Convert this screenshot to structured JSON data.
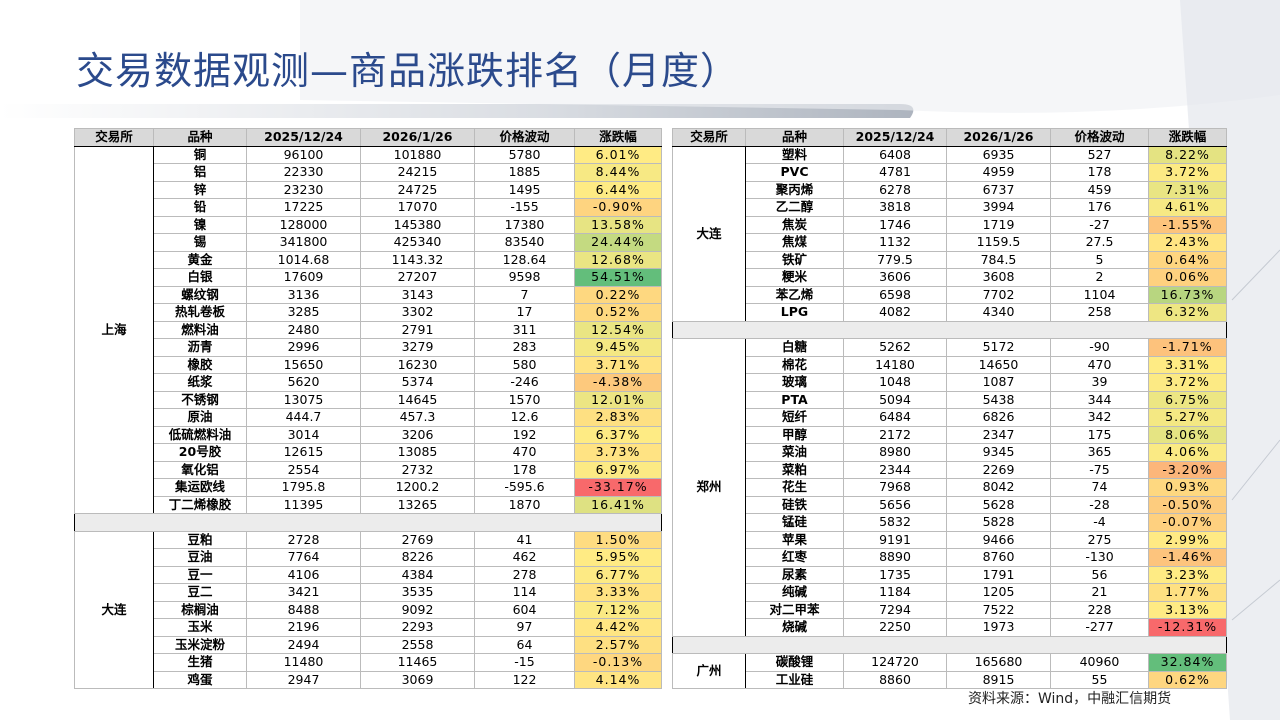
{
  "title": "交易数据观测—商品涨跌排名（月度）",
  "source": "资料来源：Wind，中融汇信期货",
  "left": {
    "headers": [
      "交易所",
      "品种",
      "2025/12/24",
      "2026/1/26",
      "价格波动",
      "涨跌幅"
    ],
    "groups": [
      {
        "exchange": "上海",
        "rows": [
          [
            "铜",
            "96100",
            "101880",
            "5780",
            "6.01%"
          ],
          [
            "铝",
            "22330",
            "24215",
            "1885",
            "8.44%"
          ],
          [
            "锌",
            "23230",
            "24725",
            "1495",
            "6.44%"
          ],
          [
            "铅",
            "17225",
            "17070",
            "-155",
            "-0.90%"
          ],
          [
            "镍",
            "128000",
            "145380",
            "17380",
            "13.58%"
          ],
          [
            "锡",
            "341800",
            "425340",
            "83540",
            "24.44%"
          ],
          [
            "黄金",
            "1014.68",
            "1143.32",
            "128.64",
            "12.68%"
          ],
          [
            "白银",
            "17609",
            "27207",
            "9598",
            "54.51%"
          ],
          [
            "螺纹钢",
            "3136",
            "3143",
            "7",
            "0.22%"
          ],
          [
            "热轧卷板",
            "3285",
            "3302",
            "17",
            "0.52%"
          ],
          [
            "燃料油",
            "2480",
            "2791",
            "311",
            "12.54%"
          ],
          [
            "沥青",
            "2996",
            "3279",
            "283",
            "9.45%"
          ],
          [
            "橡胶",
            "15650",
            "16230",
            "580",
            "3.71%"
          ],
          [
            "纸浆",
            "5620",
            "5374",
            "-246",
            "-4.38%"
          ],
          [
            "不锈钢",
            "13075",
            "14645",
            "1570",
            "12.01%"
          ],
          [
            "原油",
            "444.7",
            "457.3",
            "12.6",
            "2.83%"
          ],
          [
            "低硫燃料油",
            "3014",
            "3206",
            "192",
            "6.37%"
          ],
          [
            "20号胶",
            "12615",
            "13085",
            "470",
            "3.73%"
          ],
          [
            "氧化铝",
            "2554",
            "2732",
            "178",
            "6.97%"
          ],
          [
            "集运欧线",
            "1795.8",
            "1200.2",
            "-595.6",
            "-33.17%"
          ],
          [
            "丁二烯橡胶",
            "11395",
            "13265",
            "1870",
            "16.41%"
          ]
        ]
      },
      {
        "exchange": "大连",
        "rows": [
          [
            "豆粕",
            "2728",
            "2769",
            "41",
            "1.50%"
          ],
          [
            "豆油",
            "7764",
            "8226",
            "462",
            "5.95%"
          ],
          [
            "豆一",
            "4106",
            "4384",
            "278",
            "6.77%"
          ],
          [
            "豆二",
            "3421",
            "3535",
            "114",
            "3.33%"
          ],
          [
            "棕榈油",
            "8488",
            "9092",
            "604",
            "7.12%"
          ],
          [
            "玉米",
            "2196",
            "2293",
            "97",
            "4.42%"
          ],
          [
            "玉米淀粉",
            "2494",
            "2558",
            "64",
            "2.57%"
          ],
          [
            "生猪",
            "11480",
            "11465",
            "-15",
            "-0.13%"
          ],
          [
            "鸡蛋",
            "2947",
            "3069",
            "122",
            "4.14%"
          ]
        ]
      }
    ]
  },
  "right": {
    "headers": [
      "交易所",
      "品种",
      "2025/12/24",
      "2026/1/26",
      "价格波动",
      "涨跌幅"
    ],
    "groups": [
      {
        "exchange": "大连",
        "rows": [
          [
            "塑料",
            "6408",
            "6935",
            "527",
            "8.22%"
          ],
          [
            "PVC",
            "4781",
            "4959",
            "178",
            "3.72%"
          ],
          [
            "聚丙烯",
            "6278",
            "6737",
            "459",
            "7.31%"
          ],
          [
            "乙二醇",
            "3818",
            "3994",
            "176",
            "4.61%"
          ],
          [
            "焦炭",
            "1746",
            "1719",
            "-27",
            "-1.55%"
          ],
          [
            "焦煤",
            "1132",
            "1159.5",
            "27.5",
            "2.43%"
          ],
          [
            "铁矿",
            "779.5",
            "784.5",
            "5",
            "0.64%"
          ],
          [
            "粳米",
            "3606",
            "3608",
            "2",
            "0.06%"
          ],
          [
            "苯乙烯",
            "6598",
            "7702",
            "1104",
            "16.73%"
          ],
          [
            "LPG",
            "4082",
            "4340",
            "258",
            "6.32%"
          ]
        ]
      },
      {
        "exchange": "郑州",
        "rows": [
          [
            "白糖",
            "5262",
            "5172",
            "-90",
            "-1.71%"
          ],
          [
            "棉花",
            "14180",
            "14650",
            "470",
            "3.31%"
          ],
          [
            "玻璃",
            "1048",
            "1087",
            "39",
            "3.72%"
          ],
          [
            "PTA",
            "5094",
            "5438",
            "344",
            "6.75%"
          ],
          [
            "短纤",
            "6484",
            "6826",
            "342",
            "5.27%"
          ],
          [
            "甲醇",
            "2172",
            "2347",
            "175",
            "8.06%"
          ],
          [
            "菜油",
            "8980",
            "9345",
            "365",
            "4.06%"
          ],
          [
            "菜粕",
            "2344",
            "2269",
            "-75",
            "-3.20%"
          ],
          [
            "花生",
            "7968",
            "8042",
            "74",
            "0.93%"
          ],
          [
            "硅铁",
            "5656",
            "5628",
            "-28",
            "-0.50%"
          ],
          [
            "锰硅",
            "5832",
            "5828",
            "-4",
            "-0.07%"
          ],
          [
            "苹果",
            "9191",
            "9466",
            "275",
            "2.99%"
          ],
          [
            "红枣",
            "8890",
            "8760",
            "-130",
            "-1.46%"
          ],
          [
            "尿素",
            "1735",
            "1791",
            "56",
            "3.23%"
          ],
          [
            "纯碱",
            "1184",
            "1205",
            "21",
            "1.77%"
          ],
          [
            "对二甲苯",
            "7294",
            "7522",
            "228",
            "3.13%"
          ],
          [
            "烧碱",
            "2250",
            "1973",
            "-277",
            "-12.31%"
          ]
        ]
      },
      {
        "exchange": "广州",
        "rows": [
          [
            "碳酸锂",
            "124720",
            "165680",
            "40960",
            "32.84%"
          ],
          [
            "工业硅",
            "8860",
            "8915",
            "55",
            "0.62%"
          ]
        ]
      }
    ]
  }
}
